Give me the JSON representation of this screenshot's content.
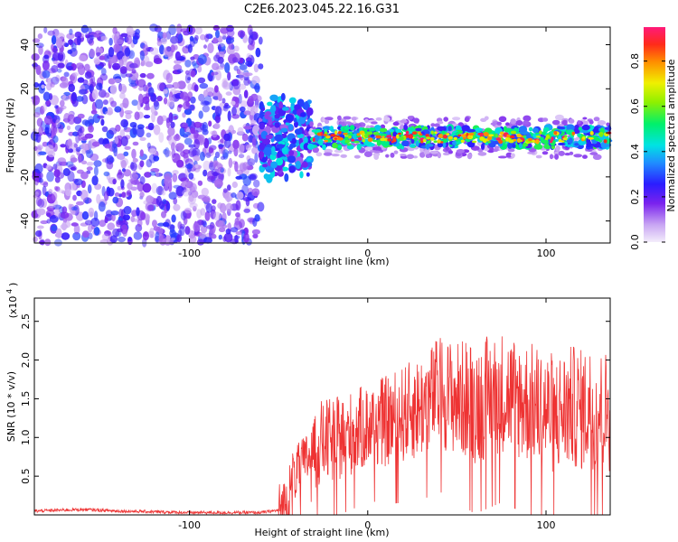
{
  "title": "C2E6.2023.045.22.16.G31",
  "colors": {
    "snr_line": "#ee3333",
    "background": "#ffffff",
    "axis": "#000000"
  },
  "chart_data": [
    {
      "type": "heatmap",
      "name": "spectrogram",
      "xlabel": "Height of straight line (km)",
      "ylabel": "Frequency (Hz)",
      "xlim": [
        -187,
        136
      ],
      "ylim": [
        -50,
        48
      ],
      "x_tick_labels": [
        "-100",
        "0",
        "100"
      ],
      "x_tick_values": [
        -100,
        0,
        100
      ],
      "y_tick_labels": [
        "-40",
        "-20",
        "0",
        "20",
        "40"
      ],
      "y_tick_values": [
        -40,
        -20,
        0,
        20,
        40
      ],
      "colorbar": {
        "label": "Normalized spectral amplitude",
        "range": [
          0.0,
          0.95
        ],
        "tick_labels": [
          "0.0",
          "0.2",
          "0.4",
          "0.6",
          "0.8"
        ],
        "tick_values": [
          0.0,
          0.2,
          0.4,
          0.6,
          0.8
        ]
      },
      "features": {
        "noise_region_x": [
          -187,
          -60
        ],
        "noise_amplitude_range": [
          0.05,
          0.3
        ],
        "transition_region_x": [
          -60,
          -32
        ],
        "transition_freq_spread_hz": [
          -20,
          20
        ],
        "signal_band_x": [
          -32,
          136
        ],
        "signal_center_hz": -2,
        "signal_halfwidth_hz": 5,
        "signal_peak_amplitude_range": [
          0.5,
          0.95
        ]
      }
    },
    {
      "type": "line",
      "name": "snr",
      "xlabel": "Height of straight line (km)",
      "ylabel": "SNR (10 * v/v)",
      "y_multiplier_label": "(x10^4)",
      "xlim": [
        -187,
        136
      ],
      "ylim": [
        0,
        2.8
      ],
      "x_tick_labels": [
        "-100",
        "0",
        "100"
      ],
      "x_tick_values": [
        -100,
        0,
        100
      ],
      "y_tick_labels": [
        "0.5",
        "1.0",
        "1.5",
        "2.0",
        "2.5"
      ],
      "y_tick_values": [
        0.5,
        1.0,
        1.5,
        2.0,
        2.5
      ],
      "series": [
        {
          "x": [
            -187,
            -160,
            -140,
            -120,
            -100,
            -80,
            -60,
            -50,
            -45,
            -42,
            -38,
            -35,
            -30,
            -25,
            -20,
            -15,
            -10,
            -5,
            0,
            5,
            10,
            15,
            20,
            25,
            30,
            35,
            40,
            45,
            50,
            55,
            60,
            65,
            70,
            75,
            80,
            85,
            90,
            95,
            100,
            105,
            110,
            115,
            120,
            125,
            130,
            136
          ],
          "y": [
            0.05,
            0.07,
            0.05,
            0.04,
            0.03,
            0.03,
            0.03,
            0.06,
            0.2,
            0.5,
            0.6,
            0.7,
            0.85,
            0.95,
            0.95,
            1.0,
            1.05,
            1.1,
            1.15,
            1.2,
            1.2,
            1.25,
            1.3,
            1.35,
            1.4,
            1.5,
            1.6,
            1.55,
            1.5,
            1.5,
            1.45,
            1.5,
            1.55,
            1.6,
            1.55,
            1.5,
            1.45,
            1.4,
            1.35,
            1.3,
            1.35,
            1.4,
            1.35,
            1.4,
            1.35,
            1.35
          ]
        }
      ]
    }
  ]
}
